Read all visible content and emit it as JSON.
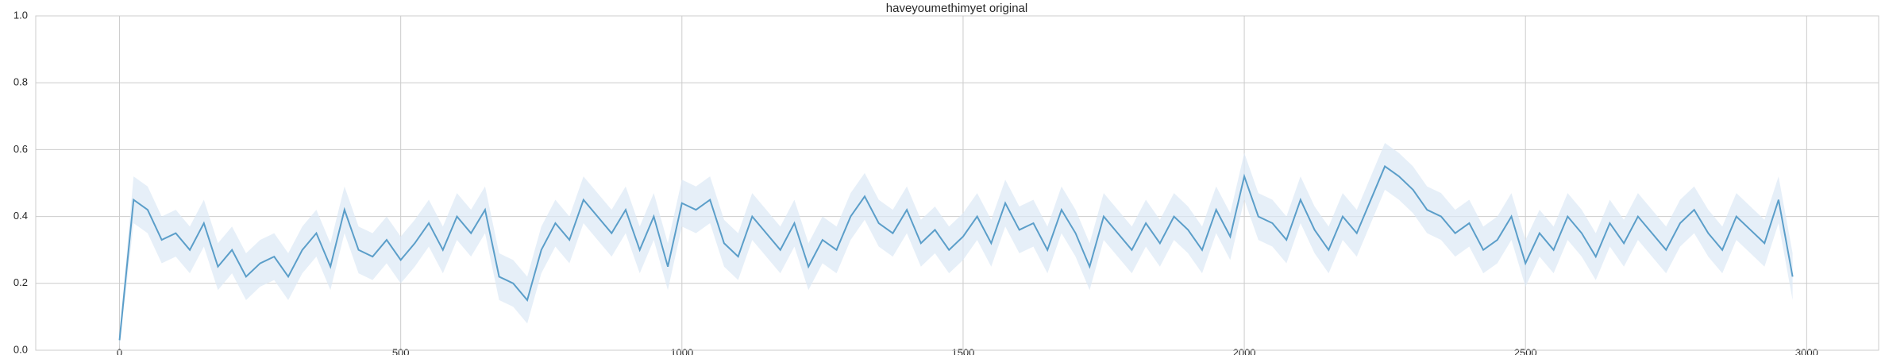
{
  "chart_data": {
    "type": "line",
    "title": "haveyoumethimyet original",
    "x": [
      0,
      25,
      50,
      75,
      100,
      125,
      150,
      175,
      200,
      225,
      250,
      275,
      300,
      325,
      350,
      375,
      400,
      425,
      450,
      475,
      500,
      525,
      550,
      575,
      600,
      625,
      650,
      675,
      700,
      725,
      750,
      775,
      800,
      825,
      850,
      875,
      900,
      925,
      950,
      975,
      1000,
      1025,
      1050,
      1075,
      1100,
      1125,
      1150,
      1175,
      1200,
      1225,
      1250,
      1275,
      1300,
      1325,
      1350,
      1375,
      1400,
      1425,
      1450,
      1475,
      1500,
      1525,
      1550,
      1575,
      1600,
      1625,
      1650,
      1675,
      1700,
      1725,
      1750,
      1775,
      1800,
      1825,
      1850,
      1875,
      1900,
      1925,
      1950,
      1975,
      2000,
      2025,
      2050,
      2075,
      2100,
      2125,
      2150,
      2175,
      2200,
      2225,
      2250,
      2275,
      2300,
      2325,
      2350,
      2375,
      2400,
      2425,
      2450,
      2475,
      2500,
      2525,
      2550,
      2575,
      2600,
      2625,
      2650,
      2675,
      2700,
      2725,
      2750,
      2775,
      2800,
      2825,
      2850,
      2875,
      2900,
      2925,
      2950,
      2975
    ],
    "values": [
      0.03,
      0.45,
      0.42,
      0.33,
      0.35,
      0.3,
      0.38,
      0.25,
      0.3,
      0.22,
      0.26,
      0.28,
      0.22,
      0.3,
      0.35,
      0.25,
      0.42,
      0.3,
      0.28,
      0.33,
      0.27,
      0.32,
      0.38,
      0.3,
      0.4,
      0.35,
      0.42,
      0.22,
      0.2,
      0.15,
      0.3,
      0.38,
      0.33,
      0.45,
      0.4,
      0.35,
      0.42,
      0.3,
      0.4,
      0.25,
      0.44,
      0.42,
      0.45,
      0.32,
      0.28,
      0.4,
      0.35,
      0.3,
      0.38,
      0.25,
      0.33,
      0.3,
      0.4,
      0.46,
      0.38,
      0.35,
      0.42,
      0.32,
      0.36,
      0.3,
      0.34,
      0.4,
      0.32,
      0.44,
      0.36,
      0.38,
      0.3,
      0.42,
      0.35,
      0.25,
      0.4,
      0.35,
      0.3,
      0.38,
      0.32,
      0.4,
      0.36,
      0.3,
      0.42,
      0.34,
      0.52,
      0.4,
      0.38,
      0.33,
      0.45,
      0.36,
      0.3,
      0.4,
      0.35,
      0.45,
      0.55,
      0.52,
      0.48,
      0.42,
      0.4,
      0.35,
      0.38,
      0.3,
      0.33,
      0.4,
      0.26,
      0.35,
      0.3,
      0.4,
      0.35,
      0.28,
      0.38,
      0.32,
      0.4,
      0.35,
      0.3,
      0.38,
      0.42,
      0.35,
      0.3,
      0.4,
      0.36,
      0.32,
      0.45,
      0.22
    ],
    "band": {
      "lower": [
        0.01,
        0.38,
        0.35,
        0.26,
        0.28,
        0.23,
        0.31,
        0.18,
        0.23,
        0.15,
        0.19,
        0.21,
        0.15,
        0.23,
        0.28,
        0.18,
        0.35,
        0.23,
        0.21,
        0.26,
        0.2,
        0.25,
        0.31,
        0.23,
        0.33,
        0.28,
        0.35,
        0.15,
        0.13,
        0.08,
        0.23,
        0.31,
        0.26,
        0.38,
        0.33,
        0.28,
        0.35,
        0.23,
        0.33,
        0.18,
        0.37,
        0.35,
        0.38,
        0.25,
        0.21,
        0.33,
        0.28,
        0.23,
        0.31,
        0.18,
        0.26,
        0.23,
        0.33,
        0.39,
        0.31,
        0.28,
        0.35,
        0.25,
        0.29,
        0.23,
        0.27,
        0.33,
        0.25,
        0.37,
        0.29,
        0.31,
        0.23,
        0.35,
        0.28,
        0.18,
        0.33,
        0.28,
        0.23,
        0.31,
        0.25,
        0.33,
        0.29,
        0.23,
        0.35,
        0.27,
        0.45,
        0.33,
        0.31,
        0.26,
        0.38,
        0.29,
        0.23,
        0.33,
        0.28,
        0.38,
        0.48,
        0.45,
        0.41,
        0.35,
        0.33,
        0.28,
        0.31,
        0.23,
        0.26,
        0.33,
        0.19,
        0.28,
        0.23,
        0.33,
        0.28,
        0.21,
        0.31,
        0.25,
        0.33,
        0.28,
        0.23,
        0.31,
        0.35,
        0.28,
        0.23,
        0.33,
        0.29,
        0.25,
        0.38,
        0.15
      ],
      "upper": [
        0.05,
        0.52,
        0.49,
        0.4,
        0.42,
        0.37,
        0.45,
        0.32,
        0.37,
        0.29,
        0.33,
        0.35,
        0.29,
        0.37,
        0.42,
        0.32,
        0.49,
        0.37,
        0.35,
        0.4,
        0.34,
        0.39,
        0.45,
        0.37,
        0.47,
        0.42,
        0.49,
        0.29,
        0.27,
        0.22,
        0.37,
        0.45,
        0.4,
        0.52,
        0.47,
        0.42,
        0.49,
        0.37,
        0.47,
        0.32,
        0.51,
        0.49,
        0.52,
        0.39,
        0.35,
        0.47,
        0.42,
        0.37,
        0.45,
        0.32,
        0.4,
        0.37,
        0.47,
        0.53,
        0.45,
        0.42,
        0.49,
        0.39,
        0.43,
        0.37,
        0.41,
        0.47,
        0.39,
        0.51,
        0.43,
        0.45,
        0.37,
        0.49,
        0.42,
        0.32,
        0.47,
        0.42,
        0.37,
        0.45,
        0.39,
        0.47,
        0.43,
        0.37,
        0.49,
        0.41,
        0.59,
        0.47,
        0.45,
        0.4,
        0.52,
        0.43,
        0.37,
        0.47,
        0.42,
        0.52,
        0.62,
        0.59,
        0.55,
        0.49,
        0.47,
        0.42,
        0.45,
        0.37,
        0.4,
        0.47,
        0.33,
        0.42,
        0.37,
        0.47,
        0.42,
        0.35,
        0.45,
        0.39,
        0.47,
        0.42,
        0.37,
        0.45,
        0.49,
        0.42,
        0.37,
        0.47,
        0.43,
        0.39,
        0.52,
        0.29
      ]
    },
    "color": "#5b9ec9",
    "band_color": "#dbe8f5",
    "xlim": [
      -149,
      3128
    ],
    "xticks": [
      0,
      500,
      1000,
      1500,
      2000,
      2500,
      3000
    ],
    "ylim": [
      0,
      1
    ],
    "yticks": [
      {
        "value": 0,
        "label": "0.0"
      },
      0.2,
      0.4,
      0.6,
      0.8,
      {
        "value": 1,
        "label": "1.0"
      }
    ],
    "grid": true
  }
}
